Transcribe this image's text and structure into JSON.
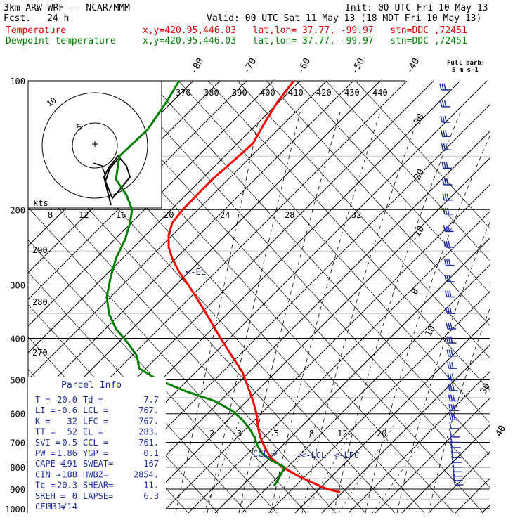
{
  "header": {
    "title": "3km ARW-WRF -- NCAR/MMM",
    "init": "Init: 00 UTC Fri 10 May 13",
    "fcst_label": "Fcst.",
    "fcst_hours": "24 h",
    "valid": "Valid: 00 UTC Sat 11 May 13 (18 MDT Fri 10 May 13)",
    "temp_label": "Temperature",
    "dew_label": "Dewpoint temperature",
    "location": "x,y=420.95,446.03   lat,lon= 37.77, -99.97   stn=DDC ,72451"
  },
  "colors": {
    "temperature": "#ff0000",
    "dewpoint": "#007f00",
    "text_blue": "#1f2f9f",
    "isobar": "#000000"
  },
  "barb_legend": {
    "title": "Full barb:",
    "value": "5 m s-1"
  },
  "hodograph": {
    "unit_label": "kts",
    "ring_labels": [
      "5",
      "10"
    ]
  },
  "axis_labels": {
    "pressure": [
      "100",
      "200",
      "300",
      "400",
      "500",
      "600",
      "700",
      "800",
      "900",
      "1000"
    ],
    "isotherm": [
      "-80",
      "-70",
      "-60",
      "-50",
      "-40",
      "-30",
      "-20",
      "-10",
      "0",
      "10",
      "30",
      "40"
    ],
    "theta_e": [
      "370",
      "380",
      "390",
      "400",
      "410",
      "420",
      "430",
      "440"
    ],
    "theta_low": [
      "290",
      "280",
      "270"
    ],
    "mixing_upper": [
      "8",
      "12",
      "16",
      "20",
      "24",
      "28",
      "32"
    ],
    "mixing_lower": [
      "2",
      "3",
      "5",
      "8",
      "12",
      "20"
    ]
  },
  "markers": {
    "el": "<-EL",
    "lcl": "<-LCL",
    "lfc": "<-LFC",
    "ccl": "CCL"
  },
  "parcel_info": {
    "title": "Parcel Info",
    "rows": [
      [
        "T   =",
        "20.0",
        "Td  =",
        "7.7"
      ],
      [
        "LI  =",
        "-0.6",
        "LCL =",
        "767."
      ],
      [
        "K   =",
        "32",
        "LFC =",
        "767."
      ],
      [
        "TT  =",
        "52",
        "EL  =",
        "283."
      ],
      [
        "SVI =",
        "-0.5",
        "CCL =",
        "761."
      ],
      [
        "PW  =",
        "1.86",
        "YGP =",
        "0.1"
      ],
      [
        "CAPE =",
        "191",
        "SWEAT=",
        "167"
      ],
      [
        "CIN  =",
        "-188",
        "HWBZ=",
        "2854."
      ],
      [
        "Tc  =",
        "20.3",
        "SHEAR=",
        "11."
      ],
      [
        "SREH =",
        "0",
        "LAPSE=",
        "6.3"
      ],
      [
        "CELL =",
        "331/14",
        "",
        ""
      ]
    ]
  },
  "chart_data": {
    "type": "line",
    "title": "",
    "xlabel": "",
    "ylabel": "",
    "y_scale": "log",
    "ylim": [
      1000,
      100
    ],
    "series": [
      {
        "name": "Temperature",
        "pressure": [
          915,
          900,
          870,
          840,
          800,
          760,
          720,
          680,
          640,
          600,
          560,
          520,
          480,
          440,
          400,
          360,
          330,
          300,
          280,
          260,
          245,
          230,
          215,
          200,
          185,
          170,
          155,
          140,
          125,
          112,
          100
        ],
        "x_at_level": [
          484,
          465,
          445,
          425,
          402,
          385,
          377,
          370,
          367,
          365,
          360,
          353,
          345,
          330,
          314,
          298,
          284,
          268,
          255,
          245,
          240,
          240,
          245,
          260,
          280,
          302,
          330,
          360,
          377,
          395,
          418
        ]
      },
      {
        "name": "Dewpoint temperature",
        "pressure": [
          885,
          860,
          830,
          800,
          770,
          740,
          710,
          680,
          650,
          620,
          590,
          560,
          530,
          500,
          470,
          440,
          410,
          380,
          350,
          320,
          290,
          260,
          235,
          215,
          200,
          185,
          170,
          150,
          130,
          112,
          100
        ],
        "x_at_level": [
          390,
          395,
          400,
          405,
          385,
          372,
          366,
          362,
          355,
          345,
          330,
          305,
          262,
          225,
          198,
          195,
          182,
          165,
          155,
          152,
          157,
          165,
          178,
          185,
          188,
          180,
          165,
          170,
          210,
          237,
          255
        ]
      }
    ]
  }
}
